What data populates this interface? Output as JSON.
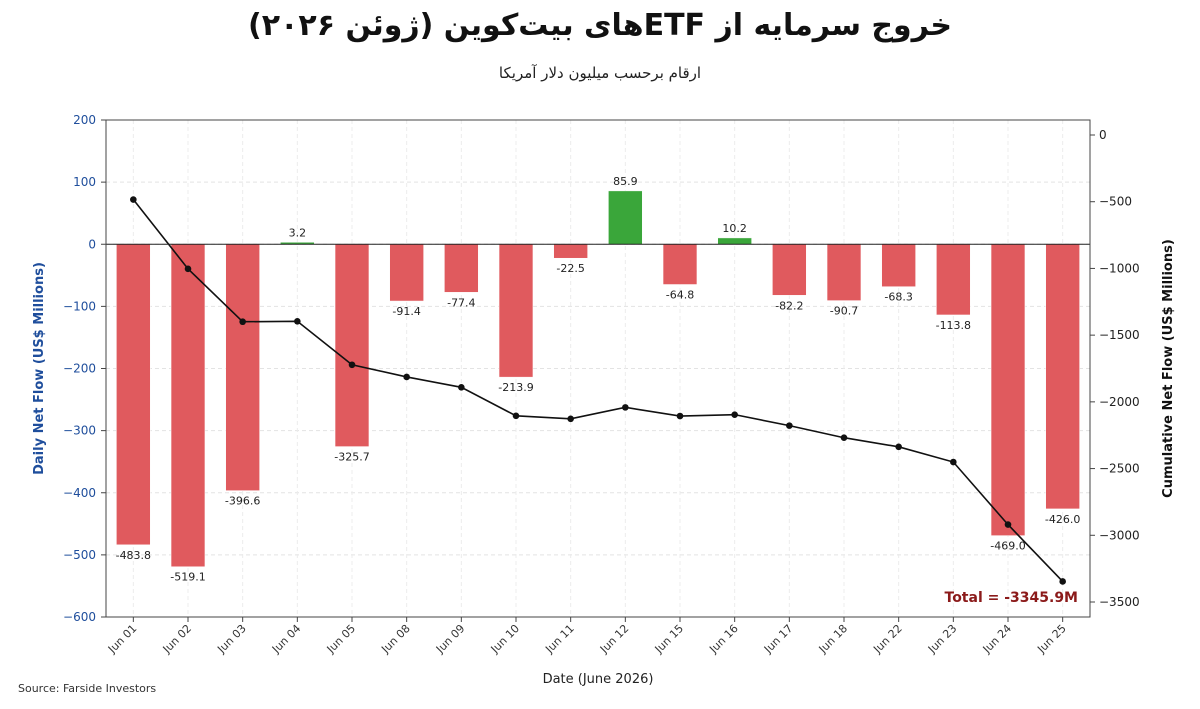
{
  "title": "خروج سرمایه از ETFهای بیت‌کوین (ژوئن ۲۰۲۶)",
  "subtitle": "ارقام برحسب میلیون دلار آمریکا",
  "source": "Source: Farside Investors",
  "colors": {
    "negative": "#e05a5e",
    "positive": "#3aa63a",
    "line": "#111111",
    "total": "#8b1a1a",
    "left_axis": "#1f4e9c"
  },
  "chart_data": {
    "type": "bar",
    "categories": [
      "Jun 01",
      "Jun 02",
      "Jun 03",
      "Jun 04",
      "Jun 05",
      "Jun 08",
      "Jun 09",
      "Jun 10",
      "Jun 11",
      "Jun 12",
      "Jun 15",
      "Jun 16",
      "Jun 17",
      "Jun 18",
      "Jun 22",
      "Jun 23",
      "Jun 24",
      "Jun 25"
    ],
    "values": [
      -483.8,
      -519.1,
      -396.6,
      3.2,
      -325.7,
      -91.4,
      -77.4,
      -213.9,
      -22.5,
      85.9,
      -64.8,
      10.2,
      -82.2,
      -90.7,
      -68.3,
      -113.8,
      -469.0,
      -426.0
    ],
    "value_labels": [
      "-483.8",
      "-519.1",
      "-396.6",
      "3.2",
      "-325.7",
      "-91.4",
      "-77.4",
      "-213.9",
      "-22.5",
      "85.9",
      "-64.8",
      "10.2",
      "-82.2",
      "-90.7",
      "-68.3",
      "-113.8",
      "-469.0",
      "-426.0"
    ],
    "cumulative": [
      -483.8,
      -1002.9,
      -1399.5,
      -1396.3,
      -1722.0,
      -1813.4,
      -1890.8,
      -2104.7,
      -2127.2,
      -2041.3,
      -2106.1,
      -2095.9,
      -2178.1,
      -2268.8,
      -2337.1,
      -2450.9,
      -2919.9,
      -3345.9
    ],
    "xlabel": "Date (June 2026)",
    "ylabel": "Daily Net Flow (US$ Millions)",
    "y2label": "Cumulative Net Flow (US$ Millions)",
    "ylim": [
      -600,
      200
    ],
    "y2lim": [
      -3500,
      0
    ],
    "yticks": [
      200,
      100,
      0,
      -100,
      -200,
      -300,
      -400,
      -500,
      -600
    ],
    "yticklabels": [
      "200",
      "100",
      "0",
      "−100",
      "−200",
      "−300",
      "−400",
      "−500",
      "−600"
    ],
    "y2ticks": [
      0,
      -500,
      -1000,
      -1500,
      -2000,
      -2500,
      -3000,
      -3500
    ],
    "y2ticklabels": [
      "0",
      "−500",
      "−1000",
      "−1500",
      "−2000",
      "−2500",
      "−3000",
      "−3500"
    ],
    "total_label": "Total = -3345.9M",
    "grid": true
  }
}
